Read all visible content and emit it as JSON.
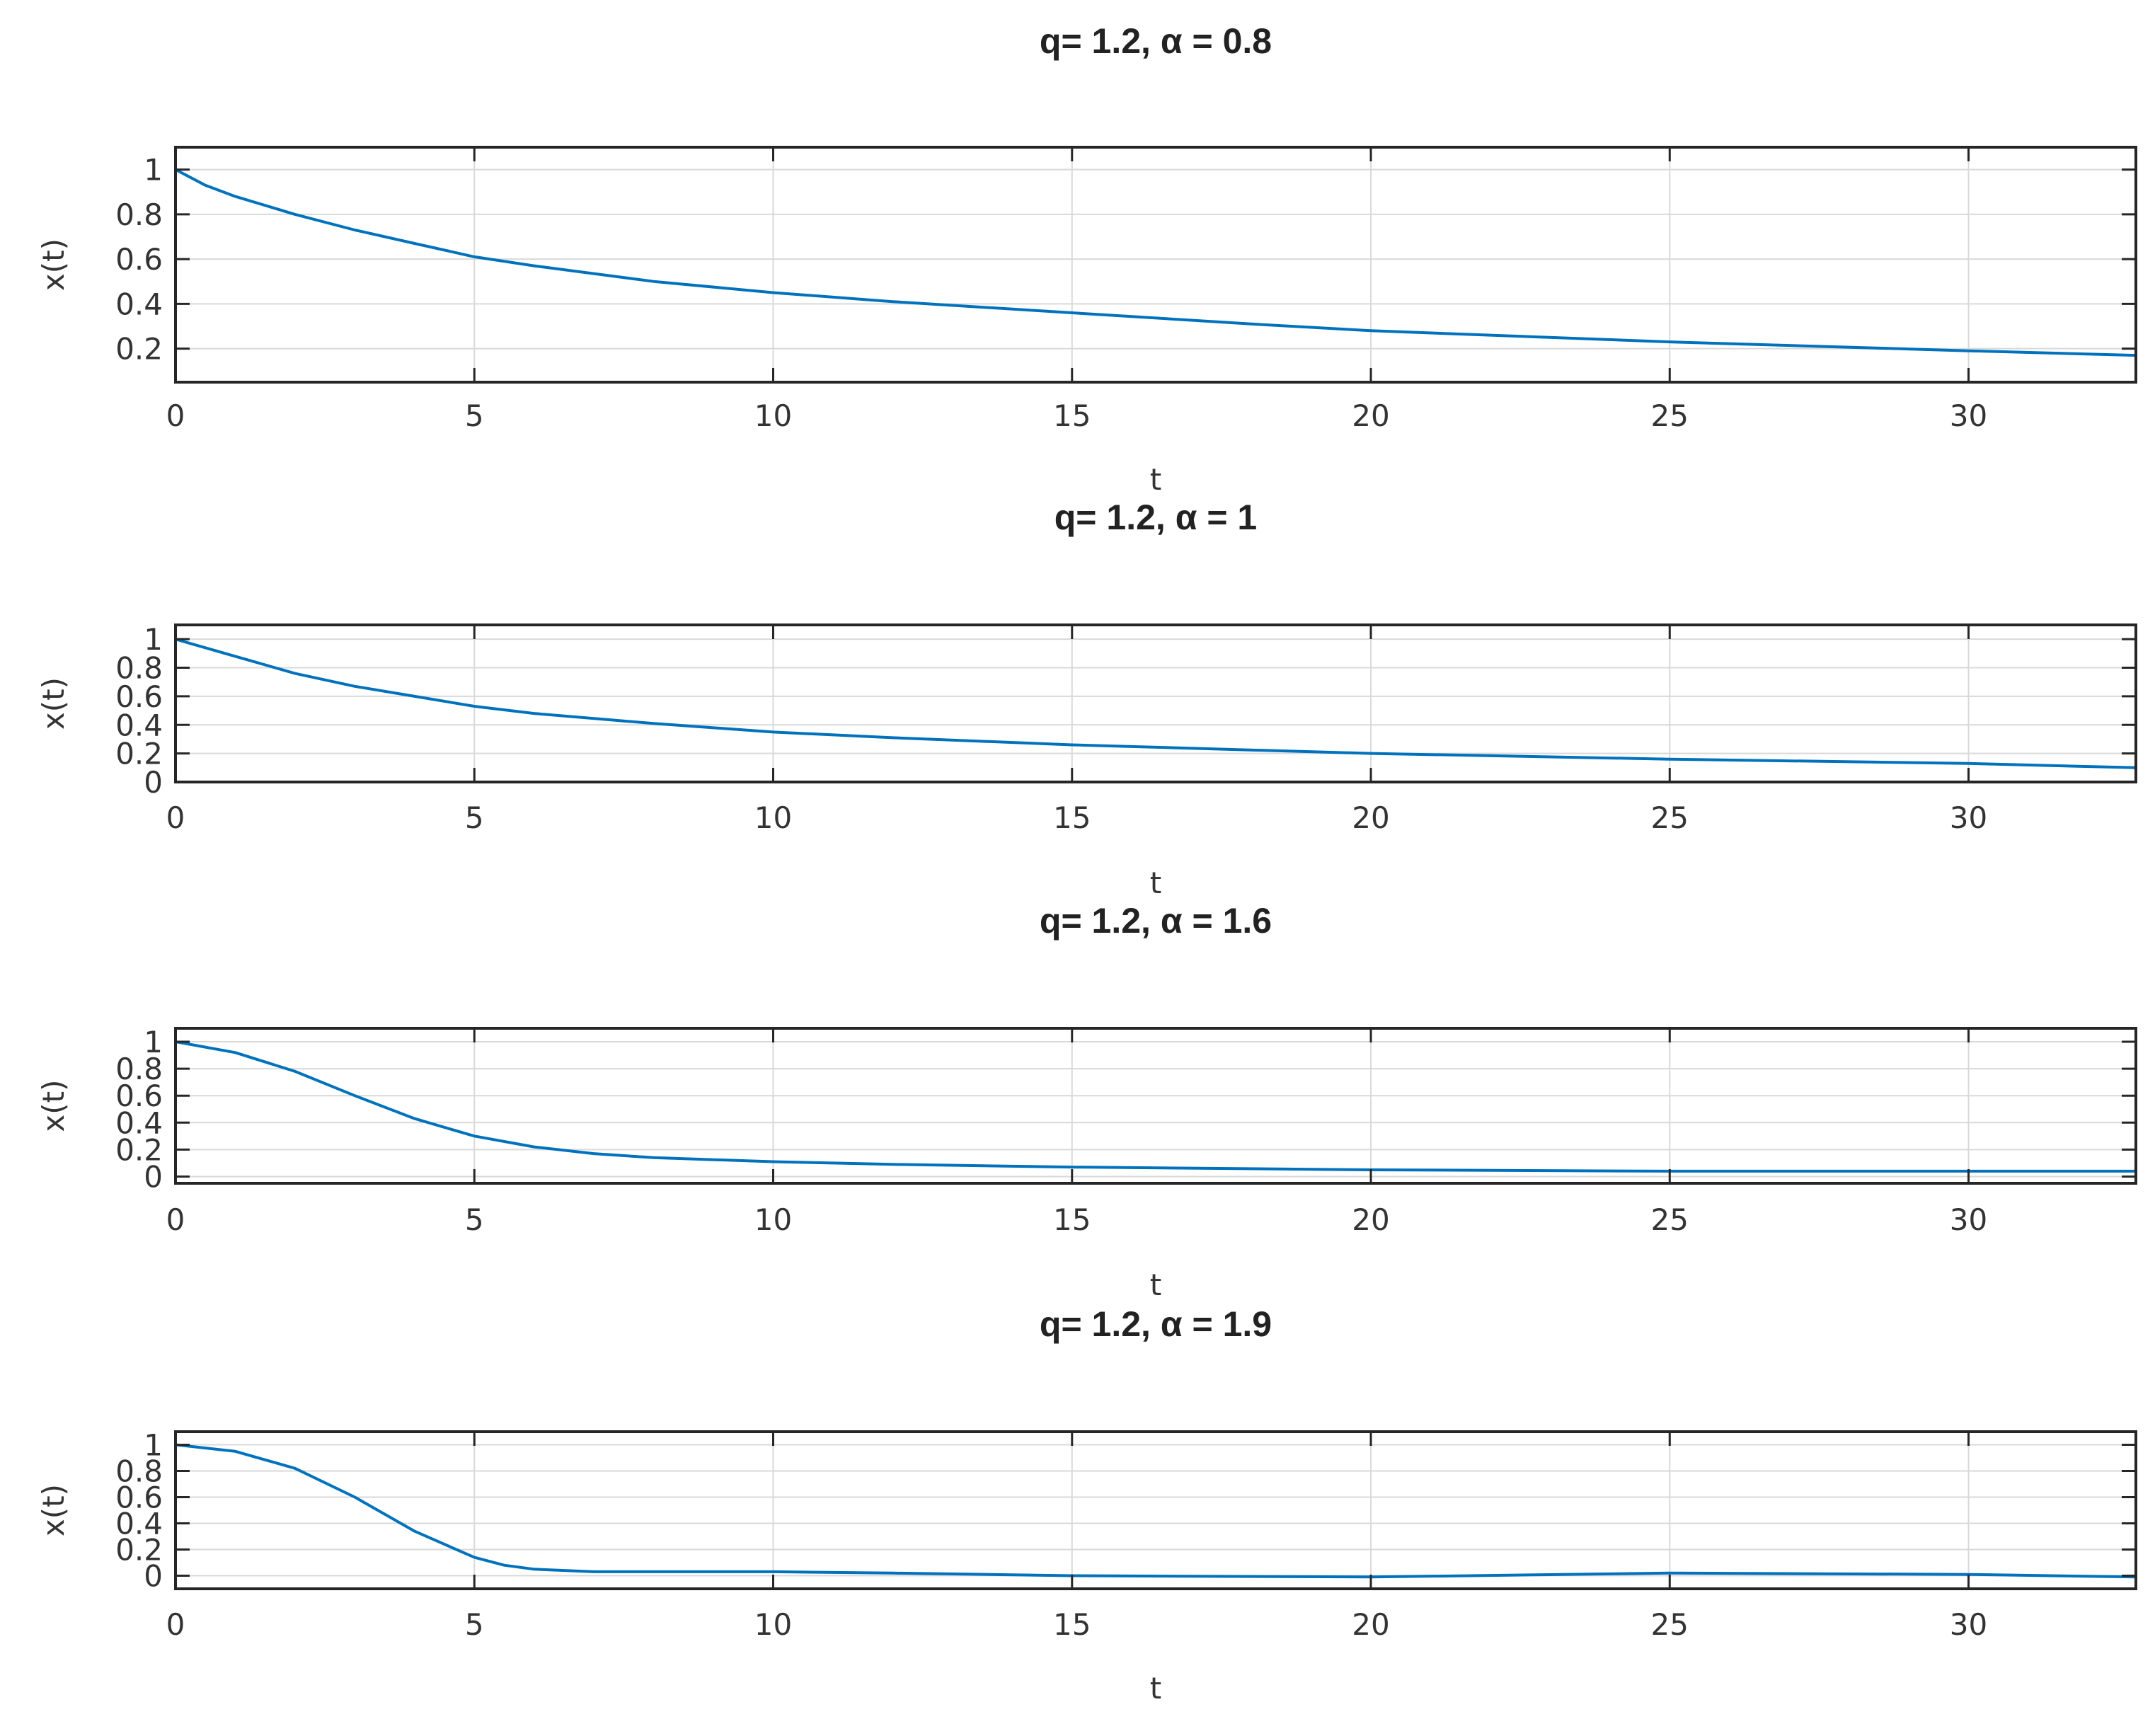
{
  "chart_data": [
    {
      "type": "line",
      "title": "q= 1.2, α = 0.8",
      "xlabel": "t",
      "ylabel": "x(t)",
      "xlim": [
        0,
        32.8
      ],
      "ylim": [
        0.05,
        1.1
      ],
      "grid": true,
      "xticks": [
        0,
        5,
        10,
        15,
        20,
        25,
        30
      ],
      "xtick_labels": [
        "0",
        "5",
        "10",
        "15",
        "20",
        "25",
        "30"
      ],
      "yticks": [
        0.2,
        0.4,
        0.6,
        0.8,
        1
      ],
      "ytick_labels": [
        "0.2",
        "0.4",
        "0.6",
        "0.8",
        "1"
      ],
      "series": [
        {
          "color": "#0072bd",
          "x": [
            0,
            0.5,
            1,
            2,
            3,
            4,
            5,
            6,
            8,
            10,
            12,
            15,
            18,
            20,
            25,
            30,
            32.8
          ],
          "y": [
            1.0,
            0.93,
            0.88,
            0.8,
            0.73,
            0.67,
            0.61,
            0.57,
            0.5,
            0.45,
            0.41,
            0.36,
            0.31,
            0.28,
            0.23,
            0.19,
            0.17
          ]
        }
      ]
    },
    {
      "type": "line",
      "title": "q= 1.2, α = 1",
      "xlabel": "t",
      "ylabel": "x(t)",
      "xlim": [
        0,
        32.8
      ],
      "ylim": [
        0,
        1.1
      ],
      "grid": true,
      "xticks": [
        0,
        5,
        10,
        15,
        20,
        25,
        30
      ],
      "xtick_labels": [
        "0",
        "5",
        "10",
        "15",
        "20",
        "25",
        "30"
      ],
      "yticks": [
        0,
        0.2,
        0.4,
        0.6,
        0.8,
        1
      ],
      "ytick_labels": [
        "0",
        "0.2",
        "0.4",
        "0.6",
        "0.8",
        "1"
      ],
      "series": [
        {
          "color": "#0072bd",
          "x": [
            0,
            1,
            2,
            3,
            4,
            5,
            6,
            8,
            10,
            12,
            15,
            20,
            25,
            30,
            32.8
          ],
          "y": [
            1.0,
            0.88,
            0.76,
            0.67,
            0.6,
            0.53,
            0.48,
            0.41,
            0.35,
            0.31,
            0.26,
            0.2,
            0.16,
            0.13,
            0.1
          ]
        }
      ]
    },
    {
      "type": "line",
      "title": "q= 1.2, α = 1.6",
      "xlabel": "t",
      "ylabel": "x(t)",
      "xlim": [
        0,
        32.8
      ],
      "ylim": [
        -0.05,
        1.1
      ],
      "grid": true,
      "xticks": [
        0,
        5,
        10,
        15,
        20,
        25,
        30
      ],
      "xtick_labels": [
        "0",
        "5",
        "10",
        "15",
        "20",
        "25",
        "30"
      ],
      "yticks": [
        0,
        0.2,
        0.4,
        0.6,
        0.8,
        1
      ],
      "ytick_labels": [
        "0",
        "0.2",
        "0.4",
        "0.6",
        "0.8",
        "1"
      ],
      "series": [
        {
          "color": "#0072bd",
          "x": [
            0,
            1,
            2,
            3,
            4,
            5,
            6,
            7,
            8,
            10,
            12,
            15,
            20,
            25,
            30,
            32.8
          ],
          "y": [
            1.0,
            0.92,
            0.78,
            0.6,
            0.43,
            0.3,
            0.22,
            0.17,
            0.14,
            0.11,
            0.09,
            0.07,
            0.05,
            0.04,
            0.04,
            0.04
          ]
        }
      ]
    },
    {
      "type": "line",
      "title": "q= 1.2, α = 1.9",
      "xlabel": "t",
      "ylabel": "x(t)",
      "xlim": [
        0,
        32.8
      ],
      "ylim": [
        -0.1,
        1.1
      ],
      "grid": true,
      "xticks": [
        0,
        5,
        10,
        15,
        20,
        25,
        30
      ],
      "xtick_labels": [
        "0",
        "5",
        "10",
        "15",
        "20",
        "25",
        "30"
      ],
      "yticks": [
        0,
        0.2,
        0.4,
        0.6,
        0.8,
        1
      ],
      "ytick_labels": [
        "0",
        "0.2",
        "0.4",
        "0.6",
        "0.8",
        "1"
      ],
      "series": [
        {
          "color": "#0072bd",
          "x": [
            0,
            1,
            2,
            3,
            4,
            5,
            5.5,
            6,
            7,
            8,
            10,
            12,
            15,
            20,
            25,
            30,
            32.8
          ],
          "y": [
            1.0,
            0.95,
            0.82,
            0.6,
            0.34,
            0.14,
            0.08,
            0.05,
            0.03,
            0.03,
            0.03,
            0.02,
            0.0,
            -0.01,
            0.02,
            0.01,
            -0.01
          ]
        }
      ]
    }
  ]
}
